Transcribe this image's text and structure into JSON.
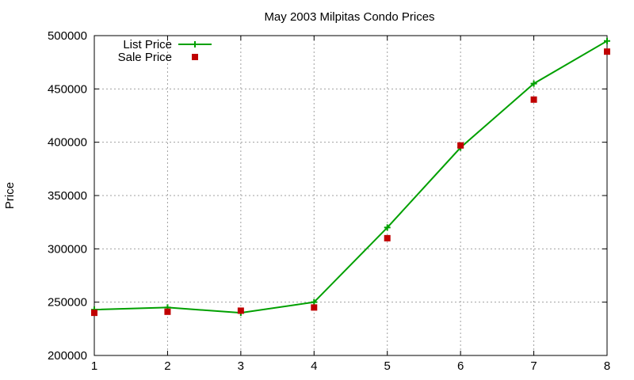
{
  "chart_data": {
    "type": "line",
    "title": "May 2003 Milpitas Condo Prices",
    "ylabel": "Price",
    "xlabel": "",
    "x": [
      1,
      2,
      3,
      4,
      5,
      6,
      7,
      8
    ],
    "xlim": [
      1,
      8
    ],
    "ylim": [
      200000,
      500000
    ],
    "xticks": [
      "1",
      "2",
      "3",
      "4",
      "5",
      "6",
      "7",
      "8"
    ],
    "yticks": [
      "200000",
      "250000",
      "300000",
      "350000",
      "400000",
      "450000",
      "500000"
    ],
    "grid": true,
    "legend_position": "top-left",
    "series": [
      {
        "name": "List Price",
        "style": "line-with-plus-points",
        "color": "#00a000",
        "values": [
          243000,
          245000,
          240000,
          250000,
          320000,
          395000,
          455000,
          495000
        ]
      },
      {
        "name": "Sale Price",
        "style": "square-points",
        "color": "#c00000",
        "values": [
          240000,
          241000,
          242000,
          245000,
          310000,
          397000,
          440000,
          485000
        ]
      }
    ]
  }
}
